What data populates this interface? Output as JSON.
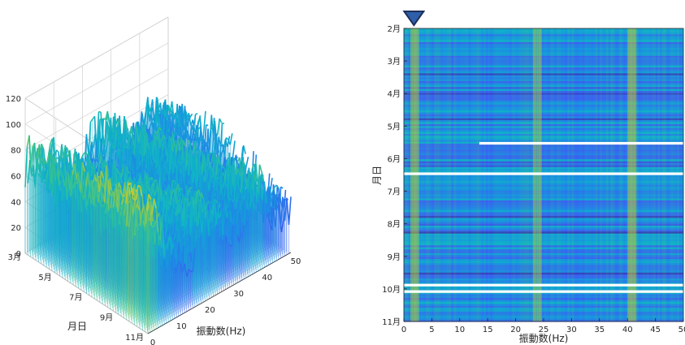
{
  "chart_data": [
    {
      "type": "surface",
      "title": "",
      "xlabel": "振動数(Hz)",
      "ylabel": "月日",
      "zlabel": "",
      "x_ticks": [
        "0",
        "10",
        "20",
        "30",
        "40",
        "50"
      ],
      "y_ticks": [
        "3月",
        "5月",
        "7月",
        "9月",
        "11月"
      ],
      "z_ticks": [
        "0",
        "20",
        "40",
        "60",
        "80",
        "100",
        "120"
      ],
      "xlim": [
        0,
        50
      ],
      "zlim": [
        0,
        120
      ],
      "colormap": "parula",
      "grid": true,
      "surface_summary": {
        "low_frequency_peak_hz": 1,
        "typical_high_level": 70,
        "max_level": 110,
        "min_level": 0
      }
    },
    {
      "type": "heatmap",
      "title": "",
      "xlabel": "振動数(Hz)",
      "ylabel": "月日",
      "x_ticks": [
        "0",
        "5",
        "10",
        "15",
        "20",
        "25",
        "30",
        "35",
        "40",
        "45",
        "50"
      ],
      "y_ticks": [
        "2月",
        "3月",
        "4月",
        "5月",
        "6月",
        "7月",
        "8月",
        "9月",
        "10月",
        "11月"
      ],
      "xlim": [
        0,
        50
      ],
      "colormap": "parula",
      "marker": {
        "shape": "triangle-down",
        "x_hz": 1.8,
        "color": "#2e5fa8"
      },
      "data_gaps": [
        {
          "start_hz": 13.5,
          "end_hz": 50,
          "date_fraction": 0.392
        },
        {
          "start_hz": 0,
          "end_hz": 50,
          "date_fraction": 0.496
        },
        {
          "start_hz": 0,
          "end_hz": 50,
          "date_fraction": 0.876
        },
        {
          "start_hz": 0,
          "end_hz": 50,
          "date_fraction": 0.898
        }
      ],
      "highlight_bands_hz": [
        1.8,
        23.5,
        40.5
      ]
    }
  ]
}
